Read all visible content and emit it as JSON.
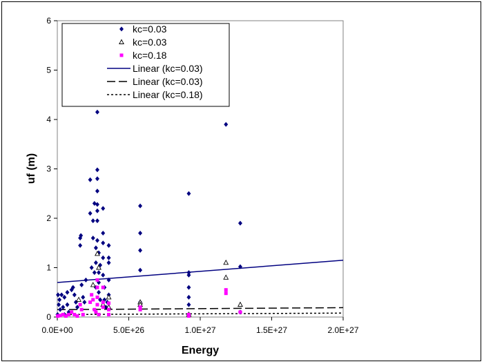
{
  "chart_data": {
    "type": "scatter",
    "xlabel": "Energy",
    "ylabel": "uf (m)",
    "xlim": [
      0,
      2e+27
    ],
    "ylim": [
      0,
      6
    ],
    "x_ticks": [
      0,
      5e+26,
      1e+27,
      1.5e+27,
      2e+27
    ],
    "x_tick_labels": [
      "0.0E+00",
      "5.0E+26",
      "1.0E+27",
      "1.5E+27",
      "2.0E+27"
    ],
    "y_ticks": [
      0,
      1,
      2,
      3,
      4,
      5,
      6
    ],
    "y_tick_labels": [
      "0",
      "1",
      "2",
      "3",
      "4",
      "5",
      "6"
    ],
    "grid": false,
    "legend_position": "top-left",
    "colors": {
      "series1": "#000080",
      "series2": "#000000",
      "series3": "#ff00ff"
    },
    "series": [
      {
        "name": "kc=0.03",
        "marker": "diamond",
        "points": [
          [
            2e+24,
            0.05
          ],
          [
            5e+24,
            0.45
          ],
          [
            1e+25,
            0.25
          ],
          [
            1.5e+25,
            0.35
          ],
          [
            2e+25,
            0.15
          ],
          [
            3e+25,
            0.45
          ],
          [
            4e+25,
            0.2
          ],
          [
            5e+25,
            0.05
          ],
          [
            5e+25,
            0.4
          ],
          [
            7e+25,
            0.5
          ],
          [
            7e+25,
            0.25
          ],
          [
            8e+25,
            0.1
          ],
          [
            1e+26,
            0.55
          ],
          [
            1.1e+26,
            0.6
          ],
          [
            1.2e+26,
            0.45
          ],
          [
            1.3e+26,
            0.3
          ],
          [
            1.4e+26,
            0.2
          ],
          [
            1.6e+26,
            1.45
          ],
          [
            1.6e+26,
            1.6
          ],
          [
            1.65e+26,
            1.65
          ],
          [
            1.7e+26,
            0.65
          ],
          [
            1.8e+26,
            0.4
          ],
          [
            1.9e+26,
            0.3
          ],
          [
            2e+26,
            0.75
          ],
          [
            2.3e+26,
            2.78
          ],
          [
            2.3e+26,
            2.1
          ],
          [
            2.4e+26,
            1.0
          ],
          [
            2.5e+26,
            1.6
          ],
          [
            2.5e+26,
            1.95
          ],
          [
            2.6e+26,
            2.3
          ],
          [
            2.6e+26,
            0.9
          ],
          [
            2.7e+26,
            0.6
          ],
          [
            2.7e+26,
            1.4
          ],
          [
            2.7e+26,
            1.1
          ],
          [
            2.8e+26,
            4.15
          ],
          [
            2.8e+26,
            2.98
          ],
          [
            2.8e+26,
            2.8
          ],
          [
            2.8e+26,
            2.55
          ],
          [
            2.8e+26,
            2.28
          ],
          [
            2.8e+26,
            2.15
          ],
          [
            2.8e+26,
            1.95
          ],
          [
            2.8e+26,
            1.55
          ],
          [
            2.9e+26,
            1.3
          ],
          [
            2.9e+26,
            0.9
          ],
          [
            2.9e+26,
            0.7
          ],
          [
            2.9e+26,
            0.5
          ],
          [
            3e+26,
            0.35
          ],
          [
            3e+26,
            1.05
          ],
          [
            3.2e+26,
            2.2
          ],
          [
            3.2e+26,
            1.7
          ],
          [
            3.2e+26,
            1.5
          ],
          [
            3.2e+26,
            1.2
          ],
          [
            3.2e+26,
            0.85
          ],
          [
            3.3e+26,
            0.6
          ],
          [
            3.3e+26,
            0.35
          ],
          [
            3.4e+26,
            0.2
          ],
          [
            3.5e+26,
            0.3
          ],
          [
            3.6e+26,
            1.45
          ],
          [
            3.6e+26,
            1.2
          ],
          [
            3.6e+26,
            1.1
          ],
          [
            3.6e+26,
            0.75
          ],
          [
            3.6e+26,
            0.45
          ],
          [
            5.8e+26,
            2.25
          ],
          [
            5.8e+26,
            1.7
          ],
          [
            5.8e+26,
            1.35
          ],
          [
            5.8e+26,
            0.95
          ],
          [
            5.8e+26,
            0.3
          ],
          [
            9.2e+26,
            2.5
          ],
          [
            9.2e+26,
            0.9
          ],
          [
            9.2e+26,
            0.85
          ],
          [
            9.2e+26,
            0.6
          ],
          [
            9.2e+26,
            0.4
          ],
          [
            9.2e+26,
            0.25
          ],
          [
            9.2e+26,
            0.05
          ],
          [
            1.18e+27,
            3.9
          ],
          [
            1.28e+27,
            1.9
          ],
          [
            1.28e+27,
            1.02
          ],
          [
            1.28e+27,
            0.1
          ]
        ]
      },
      {
        "name": "kc=0.03",
        "marker": "triangle",
        "points": [
          [
            1.5e+26,
            0.35
          ],
          [
            2.5e+26,
            0.65
          ],
          [
            2.8e+26,
            1.28
          ],
          [
            2.9e+26,
            1.0
          ],
          [
            3.2e+26,
            0.25
          ],
          [
            3.6e+26,
            0.4
          ],
          [
            3.6e+26,
            0.2
          ],
          [
            5.8e+26,
            0.3
          ],
          [
            5.8e+26,
            0.25
          ],
          [
            9.2e+26,
            0.05
          ],
          [
            1.18e+27,
            1.1
          ],
          [
            1.18e+27,
            0.8
          ],
          [
            1.28e+27,
            0.25
          ]
        ]
      },
      {
        "name": "kc=0.18",
        "marker": "square",
        "points": [
          [
            3e+24,
            0.02
          ],
          [
            2e+25,
            0.03
          ],
          [
            4e+25,
            0.05
          ],
          [
            6e+25,
            0.02
          ],
          [
            8e+25,
            0.05
          ],
          [
            1e+26,
            0.1
          ],
          [
            1.2e+26,
            0.05
          ],
          [
            1.4e+26,
            0.02
          ],
          [
            1.6e+26,
            0.25
          ],
          [
            1.7e+26,
            0.15
          ],
          [
            1.8e+26,
            0.05
          ],
          [
            2.3e+26,
            0.3
          ],
          [
            2.4e+26,
            0.45
          ],
          [
            2.5e+26,
            0.35
          ],
          [
            2.6e+26,
            0.15
          ],
          [
            2.7e+26,
            0.1
          ],
          [
            2.8e+26,
            0.75
          ],
          [
            2.8e+26,
            0.6
          ],
          [
            2.8e+26,
            0.4
          ],
          [
            2.8e+26,
            0.25
          ],
          [
            2.9e+26,
            0.05
          ],
          [
            3.2e+26,
            0.6
          ],
          [
            3.2e+26,
            0.3
          ],
          [
            3.2e+26,
            0.2
          ],
          [
            3.6e+26,
            0.28
          ],
          [
            3.6e+26,
            0.15
          ],
          [
            3.6e+26,
            0.05
          ],
          [
            5.8e+26,
            0.2
          ],
          [
            5.8e+26,
            0.15
          ],
          [
            9.2e+26,
            0.05
          ],
          [
            9.2e+26,
            0.02
          ],
          [
            1.18e+27,
            0.55
          ],
          [
            1.18e+27,
            0.48
          ],
          [
            1.28e+27,
            0.1
          ]
        ]
      }
    ],
    "trendlines": [
      {
        "name": "Linear (kc=0.03)",
        "style": "solid",
        "color": "#000080",
        "y_start": 0.7,
        "y_end": 1.15
      },
      {
        "name": "Linear (kc=0.03)",
        "style": "longdash",
        "color": "#000000",
        "y_start": 0.15,
        "y_end": 0.19
      },
      {
        "name": "Linear (kc=0.18)",
        "style": "dotted",
        "color": "#000000",
        "y_start": 0.05,
        "y_end": 0.08
      }
    ]
  }
}
